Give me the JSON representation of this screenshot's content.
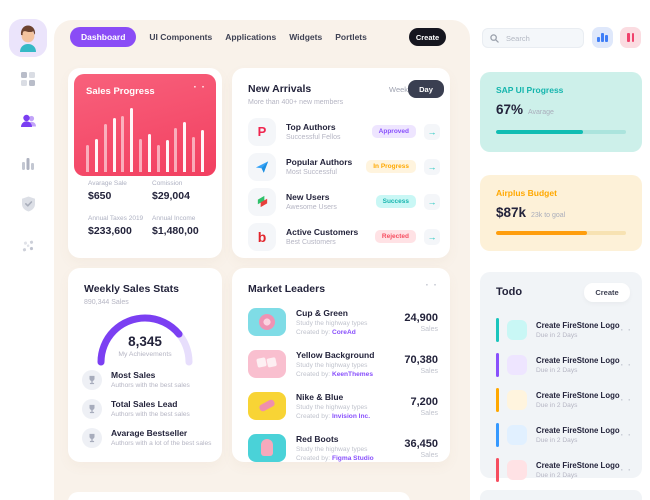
{
  "colors": {
    "accent_purple": "#8950fc",
    "teal": "#1bc5bd",
    "orange": "#ffa800",
    "blue": "#3699ff",
    "red": "#f64e60",
    "dark_text": "#23233b",
    "gray_text": "#b5b5c3",
    "cream_container": "#f9f2ea",
    "sales_card_red": "#f4506c",
    "sap_card_bg": "#cdf0ea",
    "airplus_card_bg": "#fdf1d8",
    "todo_card_bg": "#f1f4f7"
  },
  "icons": {
    "dots_menu": "· ·",
    "arrow_right": "→",
    "p_logo_glyph": "P",
    "b_logo_glyph": "b",
    "sidebar": [
      "grid-icon",
      "users-icon",
      "bar-chart-icon",
      "shield-check-icon",
      "scatter-icon"
    ],
    "sidebar_active": "users-icon"
  },
  "topnav": {
    "items": [
      {
        "label": "Dashboard",
        "active": true
      },
      {
        "label": "UI Components",
        "active": false
      },
      {
        "label": "Applications",
        "active": false
      },
      {
        "label": "Widgets",
        "active": false
      },
      {
        "label": "Portlets",
        "active": false
      }
    ],
    "create_label": "Create"
  },
  "search": {
    "placeholder": "Search"
  },
  "sales_progress": {
    "title": "Sales Progress",
    "bars": [
      42,
      52,
      75,
      85,
      88,
      100,
      52,
      60,
      42,
      50,
      68,
      78,
      55,
      65
    ],
    "stats": [
      {
        "label": "Avarage Sale",
        "value": "$650"
      },
      {
        "label": "Comission",
        "value": "$29,004"
      },
      {
        "label": "Annual Taxes 2019",
        "value": "$233,600"
      },
      {
        "label": "Annual Income",
        "value": "$1,480,00"
      }
    ]
  },
  "new_arrivals": {
    "title": "New Arrivals",
    "subtitle": "More than 400+ new members",
    "toggle": {
      "week": "Week",
      "day": "Day",
      "active": "Day"
    },
    "rows": [
      {
        "icon": "p-logo",
        "title": "Top Authors",
        "subtitle": "Successful Fellos",
        "badge": "Approved",
        "badge_style": "purple"
      },
      {
        "icon": "paper-plane",
        "title": "Popular Authors",
        "subtitle": "Most Successful",
        "badge": "In Progress",
        "badge_style": "orange"
      },
      {
        "icon": "zigzag-logo",
        "title": "New Users",
        "subtitle": "Awesome Users",
        "badge": "Success",
        "badge_style": "teal"
      },
      {
        "icon": "b-logo",
        "title": "Active Customers",
        "subtitle": "Best Customers",
        "badge": "Rejected",
        "badge_style": "red"
      }
    ]
  },
  "weekly_stats": {
    "title": "Weekly Sales Stats",
    "subtitle": "890,344 Sales",
    "gauge": {
      "value": "8,345",
      "label": "My Achievements",
      "percent": 78
    },
    "items": [
      {
        "title": "Most Sales",
        "subtitle": "Authors with the best sales"
      },
      {
        "title": "Total Sales Lead",
        "subtitle": "Authors with the best sales"
      },
      {
        "title": "Avarage Bestseller",
        "subtitle": "Authors with a lot of the best sales"
      }
    ]
  },
  "market_leaders": {
    "title": "Market Leaders",
    "rows": [
      {
        "title": "Cup & Green",
        "subtitle": "Study the highway types",
        "created_by": "Created by:",
        "creator": "CoreAd",
        "value": "24,900",
        "unit": "Sales",
        "thumb": "teal-donut"
      },
      {
        "title": "Yellow Background",
        "subtitle": "Study the highway types",
        "created_by": "Created by:",
        "creator": "KeenThemes",
        "value": "70,380",
        "unit": "Sales",
        "thumb": "pink-dice"
      },
      {
        "title": "Nike & Blue",
        "subtitle": "Study the highway types",
        "created_by": "Created by:",
        "creator": "Invision Inc.",
        "value": "7,200",
        "unit": "Sales",
        "thumb": "yellow-shoes"
      },
      {
        "title": "Red Boots",
        "subtitle": "Study the highway types",
        "created_by": "Created by:",
        "creator": "Figma Studio",
        "value": "36,450",
        "unit": "Sales",
        "thumb": "teal-candy"
      }
    ]
  },
  "sap_progress": {
    "title": "SAP UI Progress",
    "value": "67%",
    "caption": "Avarage",
    "percent": 67
  },
  "airplus_budget": {
    "title": "Airplus Budget",
    "value": "$87k",
    "caption": "23k to goal",
    "percent": 70
  },
  "todo": {
    "title": "Todo",
    "create_label": "Create",
    "items": [
      {
        "title": "Create FireStone Logo",
        "due": "Due in 2 Days",
        "color": "teal"
      },
      {
        "title": "Create FireStone Logo",
        "due": "Due in 2 Days",
        "color": "purple"
      },
      {
        "title": "Create FireStone Logo",
        "due": "Due in 2 Days",
        "color": "orange"
      },
      {
        "title": "Create FireStone Logo",
        "due": "Due in 2 Days",
        "color": "blue"
      },
      {
        "title": "Create FireStone Logo",
        "due": "Due in 2 Days",
        "color": "red"
      }
    ]
  }
}
